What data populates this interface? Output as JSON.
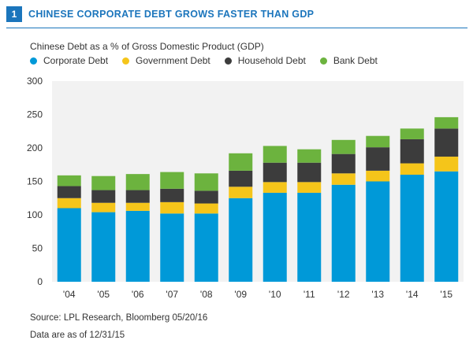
{
  "figure": {
    "number": "1",
    "title": "CHINESE CORPORATE DEBT GROWS FASTER THAN GDP"
  },
  "chart_data": {
    "type": "bar",
    "stacked": true,
    "title": "Chinese Debt as a % of Gross Domestic Product (GDP)",
    "xlabel": "",
    "ylabel": "",
    "ylim": [
      0,
      300
    ],
    "yticks": [
      0,
      50,
      100,
      150,
      200,
      250,
      300
    ],
    "categories": [
      "'04",
      "'05",
      "'06",
      "'07",
      "'08",
      "'09",
      "'10",
      "'11",
      "'12",
      "'13",
      "'14",
      "'15"
    ],
    "series": [
      {
        "name": "Corporate Debt",
        "color": "#0099d8",
        "values": [
          110,
          104,
          106,
          102,
          102,
          125,
          133,
          133,
          145,
          150,
          160,
          165
        ]
      },
      {
        "name": "Government Debt",
        "color": "#f5c51a",
        "values": [
          15,
          14,
          12,
          17,
          15,
          17,
          16,
          16,
          17,
          16,
          17,
          22
        ]
      },
      {
        "name": "Household Debt",
        "color": "#3c3c3c",
        "values": [
          18,
          19,
          19,
          20,
          19,
          24,
          29,
          29,
          29,
          35,
          36,
          42
        ]
      },
      {
        "name": "Bank Debt",
        "color": "#6cb33e",
        "values": [
          16,
          21,
          24,
          25,
          26,
          26,
          25,
          20,
          21,
          17,
          16,
          17
        ]
      }
    ],
    "grid": false,
    "plot_background": "#f2f2f2"
  },
  "footer": {
    "source": "Source: LPL Research, Bloomberg   05/20/16",
    "note": "Data are as of 12/31/15"
  }
}
